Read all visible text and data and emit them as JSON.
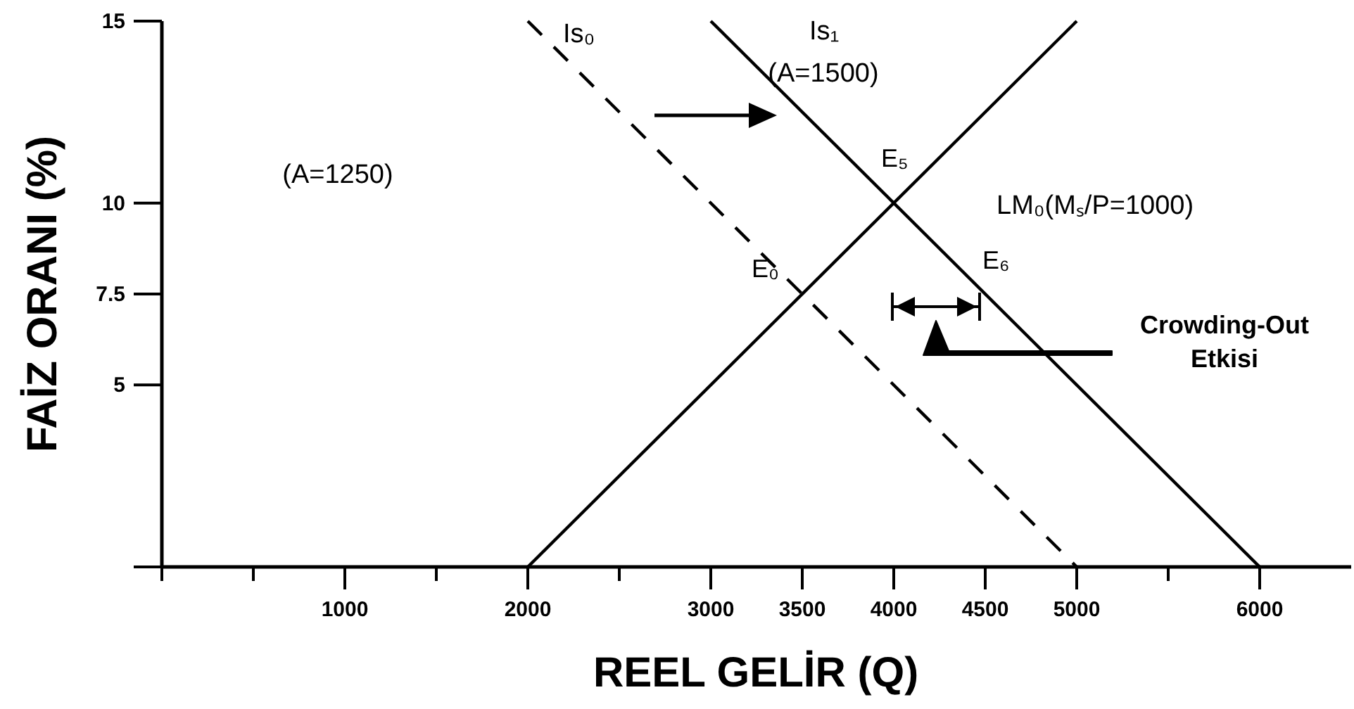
{
  "chart_data": {
    "type": "line",
    "xlabel": "REEL GELİR (Q)",
    "ylabel": "FAİZ ORANI (%)",
    "xlim": [
      0,
      6500
    ],
    "ylim": [
      0,
      15
    ],
    "xticks": [
      {
        "value": 0,
        "label": null
      },
      {
        "value": 500,
        "label": null
      },
      1000,
      {
        "value": 1500,
        "label": null
      },
      2000,
      {
        "value": 2500,
        "label": null
      },
      3000,
      3500,
      4000,
      4500,
      5000,
      {
        "value": 5500,
        "label": null
      },
      6000
    ],
    "yticks": [
      {
        "value": 0,
        "label": null
      },
      5,
      7.5,
      10,
      15
    ],
    "series": [
      {
        "name": "Is₀",
        "color": "#000000",
        "x": [
          2000,
          5000
        ],
        "values": [
          15,
          0
        ],
        "line_style": "dashed"
      },
      {
        "name": "Is₁",
        "color": "#000000",
        "x": [
          3000,
          6000
        ],
        "values": [
          15,
          0
        ],
        "line_style": "solid"
      },
      {
        "name": "LM₀(Mₛ/P=1000)",
        "color": "#000000",
        "x": [
          2000,
          5000
        ],
        "values": [
          0,
          15
        ],
        "line_style": "solid"
      }
    ],
    "annotations": [
      "(A=1250)",
      "(A=1500)",
      {
        "text": "E₅",
        "x": 4000,
        "y": 10
      },
      {
        "text": "E₀",
        "x": 3500,
        "y": 7.5
      },
      {
        "text": "E₆",
        "x": 4500,
        "y": 7.5
      },
      "Crowding-Out Etkisi"
    ]
  }
}
